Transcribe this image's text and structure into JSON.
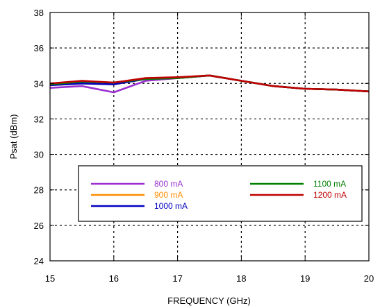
{
  "chart_data": {
    "type": "line",
    "title": "",
    "xlabel": "FREQUENCY (GHz)",
    "ylabel": "Psat (dBm)",
    "xlim": [
      15,
      20
    ],
    "ylim": [
      24,
      38
    ],
    "x_ticks": [
      15,
      16,
      17,
      18,
      19,
      20
    ],
    "y_ticks": [
      24,
      26,
      28,
      30,
      32,
      34,
      36,
      38
    ],
    "grid": true,
    "legend_position": "lower-center",
    "x": [
      15,
      15.5,
      16,
      16.5,
      17,
      17.5,
      18,
      18.5,
      19,
      19.5,
      20
    ],
    "series": [
      {
        "name": "800 mA",
        "color": "#9b30d0",
        "values": [
          33.75,
          33.85,
          33.5,
          34.15,
          34.3,
          34.45,
          34.15,
          33.85,
          33.7,
          33.65,
          33.55
        ]
      },
      {
        "name": "900 mA",
        "color": "#ff8c00",
        "values": [
          33.9,
          34.0,
          33.95,
          34.25,
          34.3,
          34.45,
          34.15,
          33.85,
          33.7,
          33.65,
          33.55
        ]
      },
      {
        "name": "1000 mA",
        "color": "#0000c0",
        "values": [
          33.9,
          34.0,
          33.95,
          34.25,
          34.3,
          34.45,
          34.15,
          33.85,
          33.7,
          33.65,
          33.55
        ]
      },
      {
        "name": "1100 mA",
        "color": "#008000",
        "values": [
          33.95,
          34.1,
          34.05,
          34.25,
          34.3,
          34.45,
          34.15,
          33.85,
          33.7,
          33.65,
          33.55
        ]
      },
      {
        "name": "1200 mA",
        "color": "#c00000",
        "values": [
          34.0,
          34.15,
          34.05,
          34.3,
          34.35,
          34.45,
          34.15,
          33.85,
          33.7,
          33.65,
          33.55
        ]
      }
    ]
  }
}
